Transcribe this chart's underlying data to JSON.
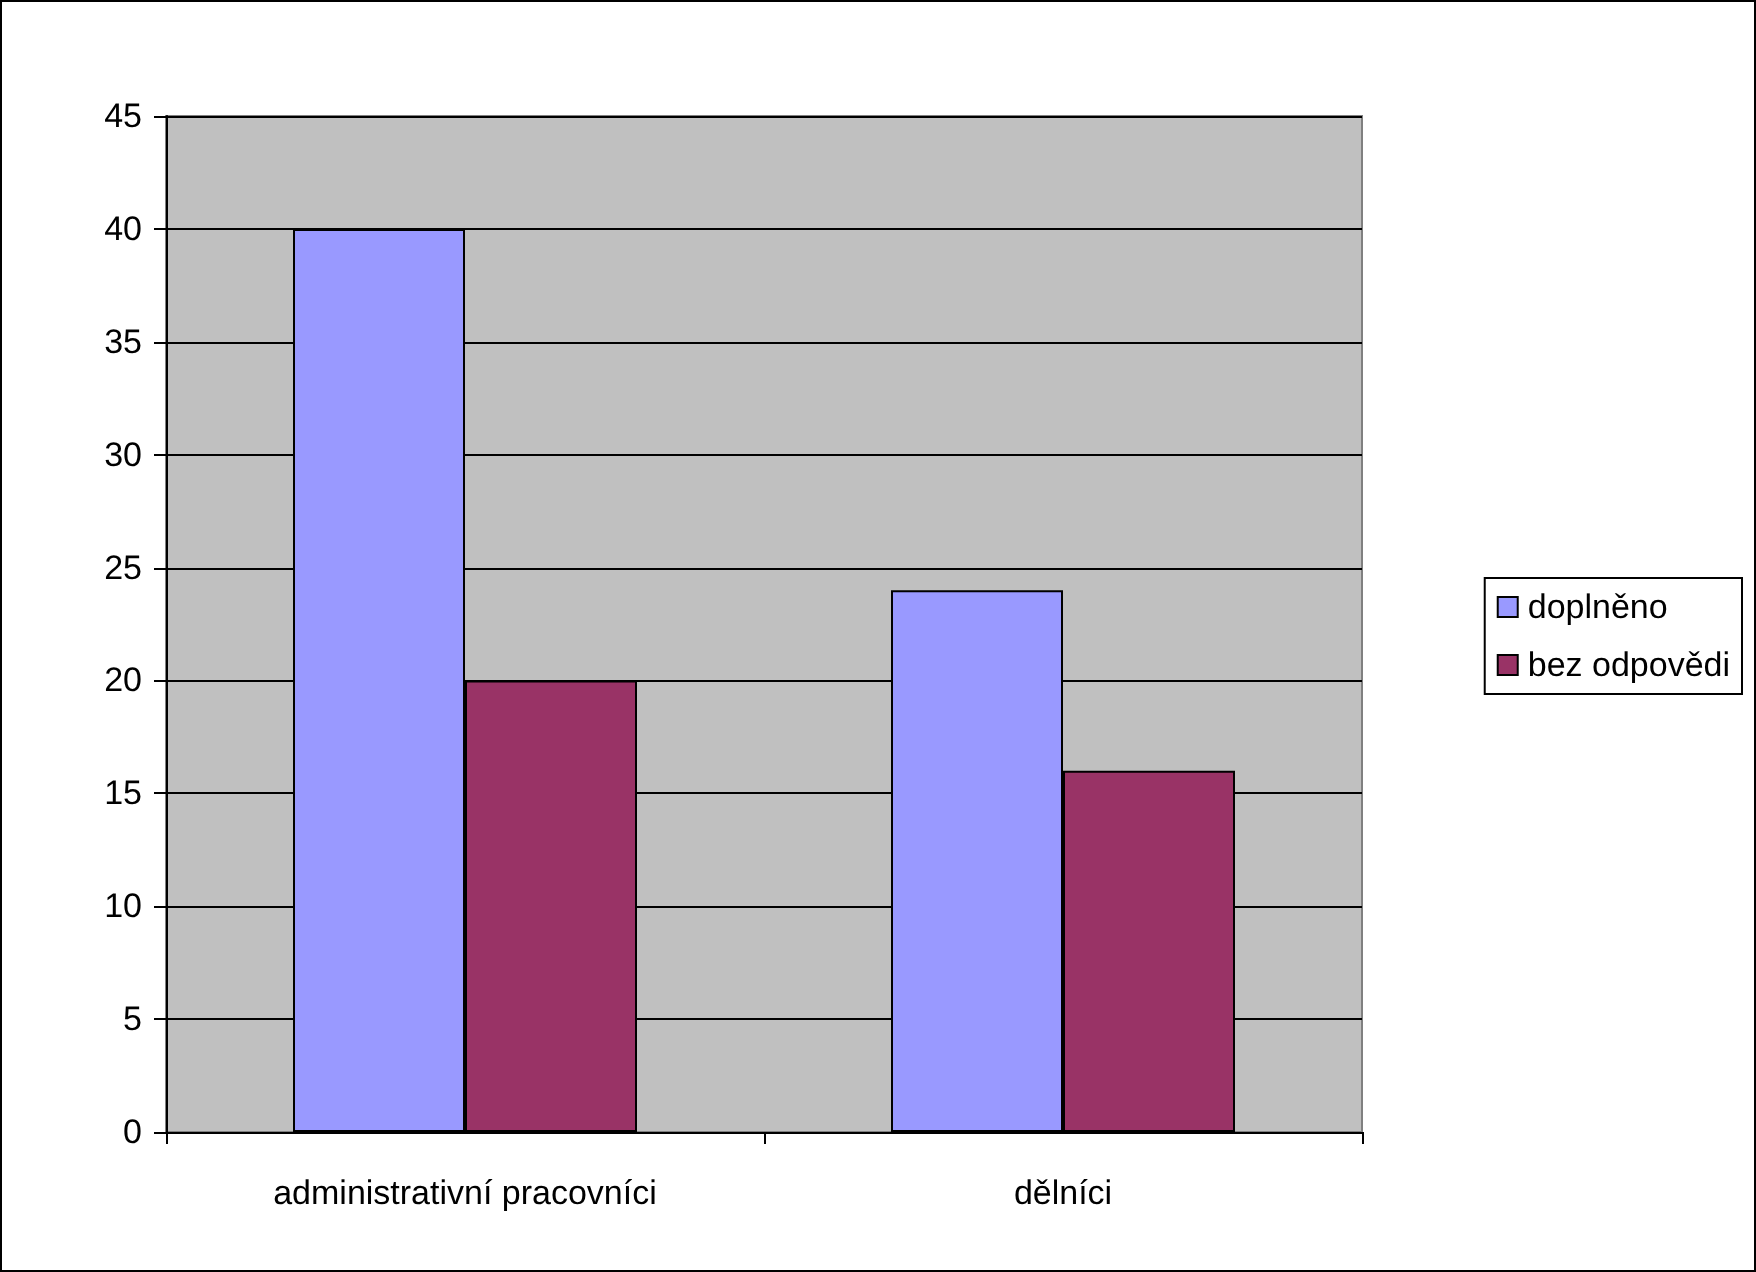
{
  "chart_data": {
    "type": "bar",
    "categories": [
      "administrativní pracovníci",
      "dělníci"
    ],
    "series": [
      {
        "name": "doplněno",
        "color": "#9999ff",
        "values": [
          40,
          24
        ]
      },
      {
        "name": "bez odpovědi",
        "color": "#993366",
        "values": [
          20,
          16
        ]
      }
    ],
    "ylim": [
      0,
      45
    ],
    "yticks": [
      0,
      5,
      10,
      15,
      20,
      25,
      30,
      35,
      40,
      45
    ],
    "grid": "y",
    "legend": "right"
  }
}
